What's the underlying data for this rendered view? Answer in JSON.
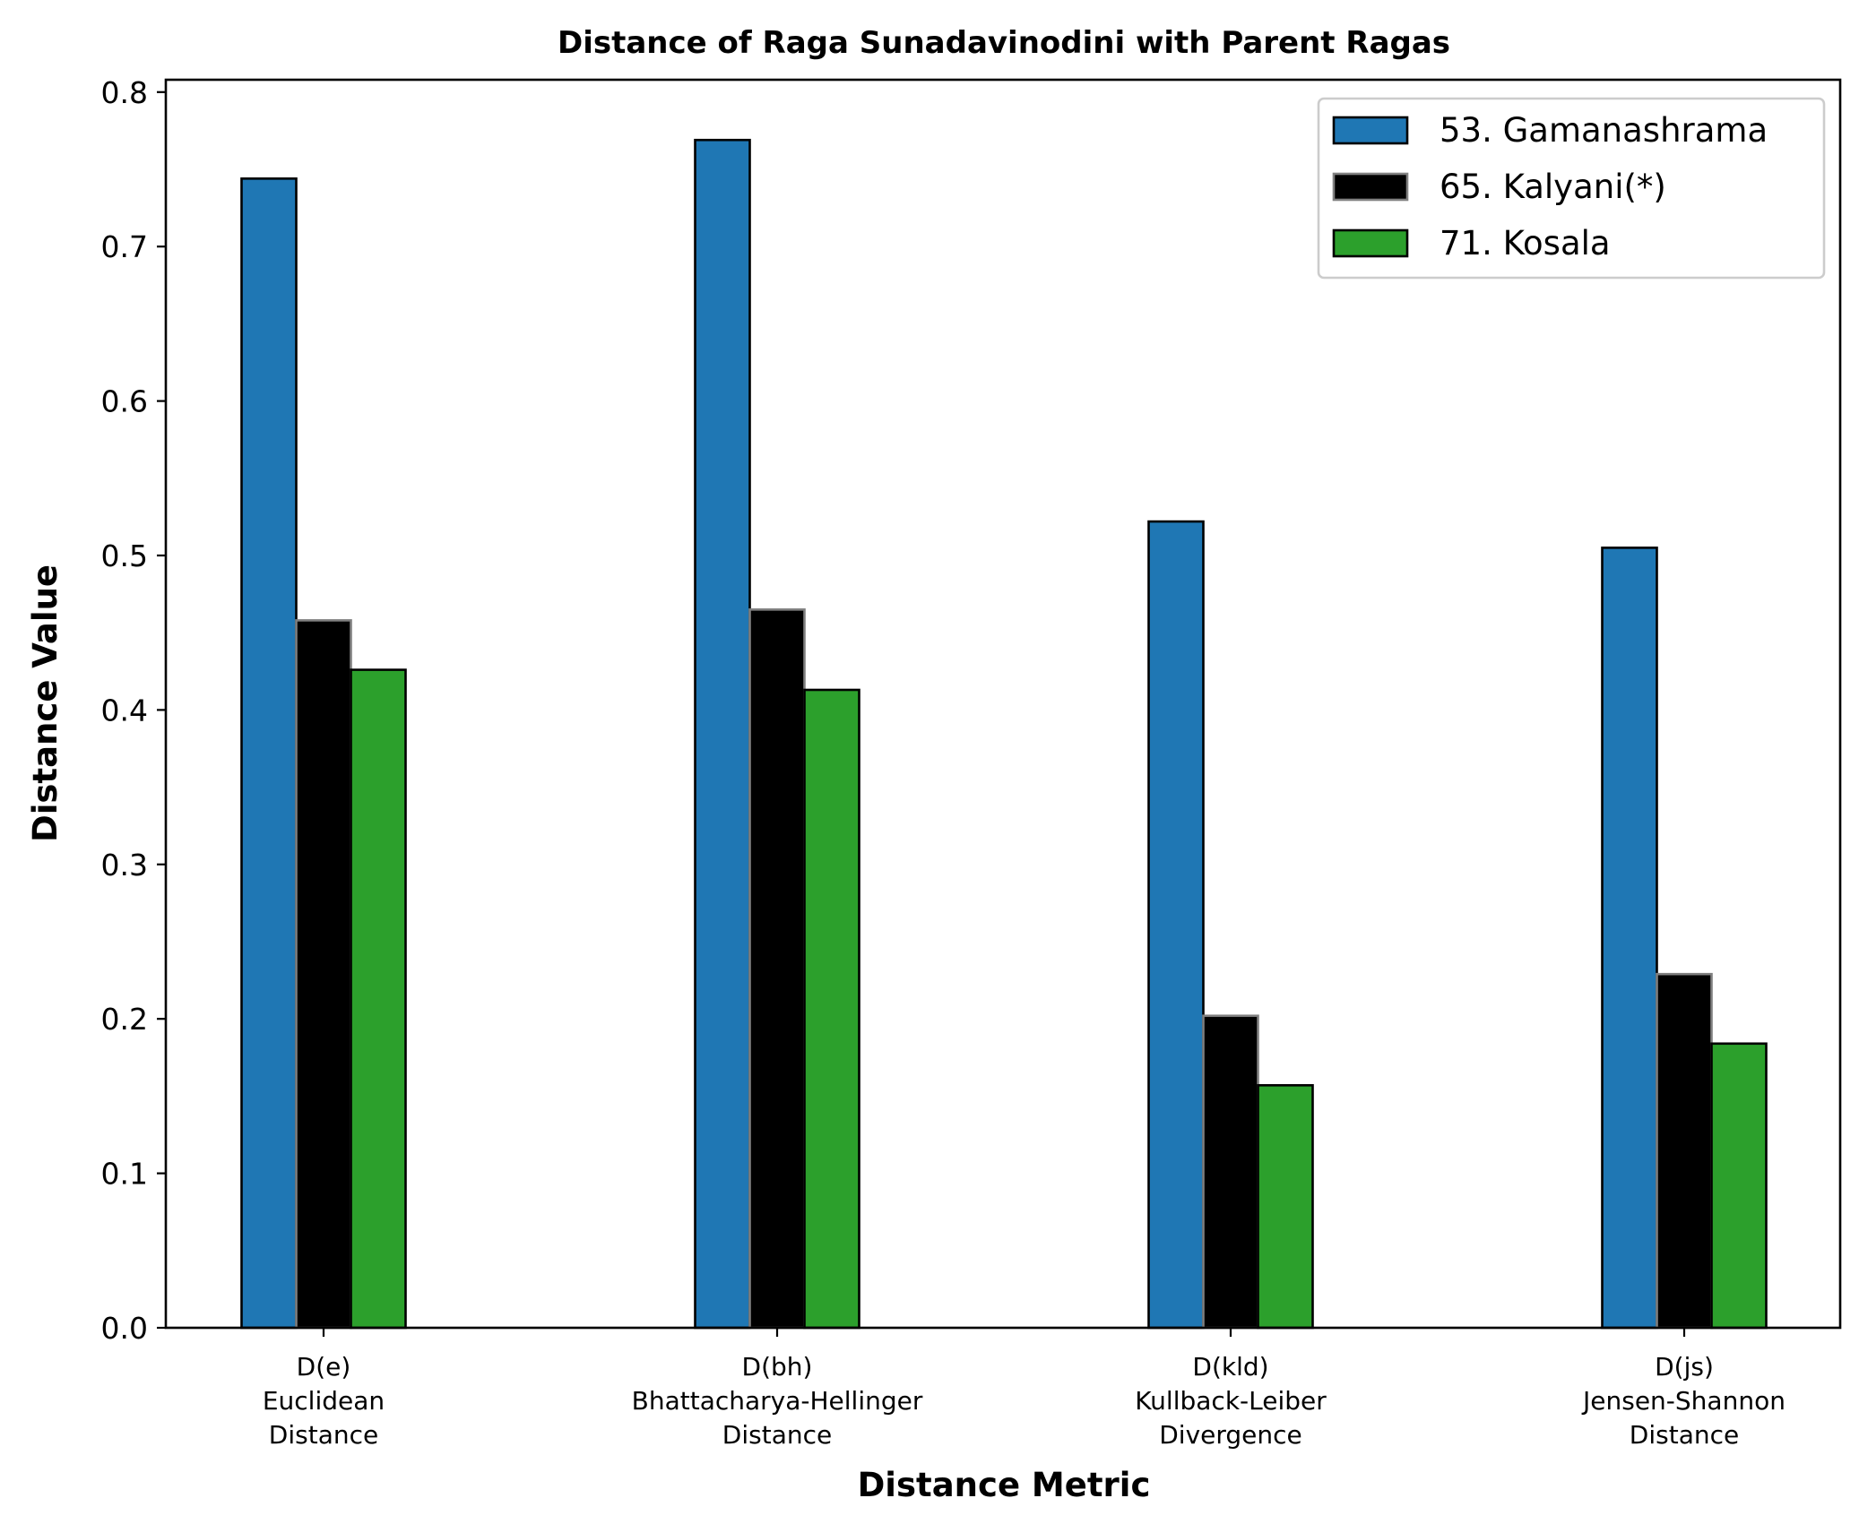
{
  "chart_data": {
    "type": "bar",
    "title": "Distance of Raga Sunadavinodini with Parent Ragas",
    "xlabel": "Distance Metric",
    "ylabel": "Distance Value",
    "ylim": [
      0,
      0.808
    ],
    "yticks": [
      "0.0",
      "0.1",
      "0.2",
      "0.3",
      "0.4",
      "0.5",
      "0.6",
      "0.7",
      "0.8"
    ],
    "categories": [
      [
        "D(e)",
        "Euclidean",
        "Distance"
      ],
      [
        "D(bh)",
        "Bhattacharya-Hellinger",
        "Distance"
      ],
      [
        "D(kld)",
        "Kullback-Leiber",
        "Divergence"
      ],
      [
        "D(js)",
        "Jensen-Shannon",
        "Distance"
      ]
    ],
    "series": [
      {
        "name": "53. Gamanashrama",
        "color": "#1f77b4",
        "edge": "#000000",
        "values": [
          0.744,
          0.769,
          0.522,
          0.505
        ]
      },
      {
        "name": "65. Kalyani(*)",
        "color": "#000000",
        "edge": "#808080",
        "values": [
          0.458,
          0.465,
          0.202,
          0.229
        ]
      },
      {
        "name": "71. Kosala",
        "color": "#2ca02c",
        "edge": "#000000",
        "values": [
          0.426,
          0.413,
          0.157,
          0.184
        ]
      }
    ],
    "legend_position": "top-right",
    "grid": false
  }
}
